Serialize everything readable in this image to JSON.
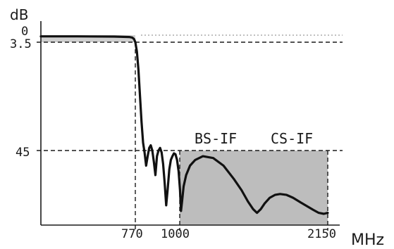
{
  "chart_data": {
    "type": "line",
    "title": "",
    "xlabel": "MHz",
    "ylabel": "dB",
    "x_ticks": [
      "770",
      "1000",
      "2150"
    ],
    "y_ticks": [
      "0",
      "3.5",
      "45"
    ],
    "grid": false,
    "legend": "none",
    "annotations": [
      {
        "text": "BS-IF",
        "x_range": [
          1000,
          1550
        ]
      },
      {
        "text": "CS-IF",
        "x_range": [
          1550,
          2150
        ]
      }
    ],
    "shaded_regions": [
      {
        "x_range": [
          0,
          770
        ],
        "y_range": [
          0,
          3.5
        ],
        "color": "#cfcfcf"
      },
      {
        "x_range": [
          1000,
          2150
        ],
        "y_range": [
          45,
          80
        ],
        "color": "#bdbdbd"
      }
    ],
    "reference_lines": [
      {
        "axis": "y",
        "value": 0,
        "style": "dotted"
      },
      {
        "axis": "y",
        "value": 3.5,
        "style": "dashed"
      },
      {
        "axis": "y",
        "value": 45,
        "style": "dashed"
      },
      {
        "axis": "x",
        "value": 770,
        "style": "dashed"
      },
      {
        "axis": "x",
        "value": 1000,
        "style": "dashed"
      },
      {
        "axis": "x",
        "value": 2150,
        "style": "dashed"
      }
    ],
    "series": [
      {
        "x": [
          0,
          300,
          600,
          720,
          745,
          760,
          770,
          778,
          786,
          794,
          802,
          810,
          818,
          826,
          834,
          842,
          850,
          858,
          866,
          874,
          882,
          890,
          898,
          906,
          914,
          922,
          930,
          938,
          946,
          954,
          962,
          970,
          978,
          986,
          994,
          1002,
          1010,
          1018,
          1030,
          1050,
          1080,
          1120,
          1180,
          1260,
          1340,
          1420,
          1480,
          1530,
          1570,
          1600,
          1630,
          1660,
          1700,
          1740,
          1780,
          1830,
          1880,
          1940,
          1990,
          2040,
          2080,
          2120,
          2150
        ],
        "values": [
          0.6,
          0.6,
          0.7,
          0.9,
          1.2,
          2.0,
          3.5,
          7,
          14,
          24,
          34,
          42,
          46,
          53,
          48,
          44,
          43,
          45,
          51,
          58,
          48,
          45,
          44,
          46,
          52,
          62,
          74,
          65,
          55,
          50,
          48,
          46.5,
          47,
          50,
          56,
          66,
          77,
          72,
          64,
          58,
          53,
          50,
          48,
          49,
          53,
          60,
          66,
          72,
          76,
          78,
          76,
          73,
          70,
          68.5,
          68,
          68.5,
          70,
          72.5,
          74.5,
          76.5,
          78,
          78.5,
          78
        ]
      }
    ],
    "xlim": [
      0,
      2150
    ],
    "ylim": [
      0,
      80
    ]
  }
}
